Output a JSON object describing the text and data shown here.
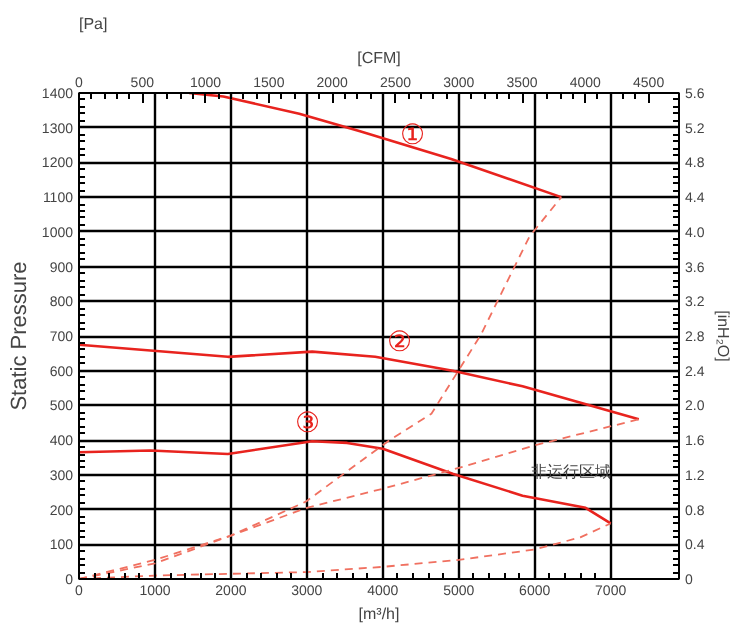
{
  "chart_data": {
    "type": "line",
    "ylabel": "Static Pressure",
    "xlabel": "[m³/h]",
    "x2label": "[CFM]",
    "y2label": "[inH₂O]",
    "annotations": [
      "[Pa]",
      {
        "text": "①",
        "x": 4400,
        "y": 1230
      },
      {
        "text": "②",
        "x": 4230,
        "y": 635
      },
      {
        "text": "③",
        "x": 3020,
        "y": 400
      },
      "非运行区域"
    ],
    "xlim": [
      0,
      7900
    ],
    "xticks": [
      0,
      1000,
      2000,
      3000,
      4000,
      5000,
      6000,
      7000
    ],
    "x2lim": [
      0,
      4740
    ],
    "x2ticks": [
      0,
      500,
      1000,
      1500,
      2000,
      2500,
      3000,
      3500,
      4000,
      4500
    ],
    "ylim": [
      0,
      1400
    ],
    "yticks": [
      0,
      100,
      200,
      300,
      400,
      500,
      600,
      700,
      800,
      900,
      1000,
      1100,
      1200,
      1300,
      1400
    ],
    "y2lim": [
      0,
      5.6
    ],
    "y2ticks": [
      0,
      0.4,
      0.8,
      1.2,
      1.6,
      {
        "value": 2,
        "label": "2.0"
      },
      2.4,
      2.8,
      3.2,
      3.6,
      {
        "value": 4,
        "label": "4.0"
      },
      4.4,
      4.8,
      5.2,
      5.6
    ],
    "grid": true,
    "marker": "none",
    "series": [
      {
        "color": "#e8231e",
        "line_style": "solid",
        "x": [
          1450,
          1900,
          2900,
          3700,
          4900,
          6350
        ],
        "values": [
          1400,
          1390,
          1340,
          1290,
          1210,
          1100
        ]
      },
      {
        "color": "#e8231e",
        "line_style": "solid",
        "x": [
          0,
          1960,
          3070,
          3900,
          4920,
          5840,
          7370
        ],
        "values": [
          675,
          640,
          655,
          640,
          600,
          555,
          460
        ]
      },
      {
        "color": "#e8231e",
        "line_style": "solid",
        "x": [
          0,
          940,
          1960,
          3070,
          3530,
          4000,
          4920,
          5840,
          6670,
          7000
        ],
        "values": [
          365,
          370,
          360,
          397,
          392,
          375,
          303,
          240,
          205,
          160
        ]
      },
      {
        "color": "#f07060",
        "line_style": "dashed",
        "x": [
          0,
          1000,
          2000,
          2980,
          4090,
          4640,
          5290,
          5930,
          6350
        ],
        "values": [
          0,
          45,
          125,
          222,
          400,
          476,
          703,
          986,
          1100
        ]
      },
      {
        "color": "#f07060",
        "line_style": "dashed",
        "x": [
          0,
          1000,
          2000,
          3000,
          4000,
          5000,
          6000,
          7370
        ],
        "values": [
          0,
          55,
          125,
          205,
          260,
          320,
          385,
          460
        ]
      },
      {
        "color": "#f07060",
        "line_style": "dashed",
        "x": [
          0,
          1000,
          2000,
          3000,
          4000,
          5000,
          6000,
          6600,
          7000
        ],
        "values": [
          0,
          10,
          15,
          20,
          35,
          55,
          85,
          120,
          160
        ]
      }
    ]
  }
}
